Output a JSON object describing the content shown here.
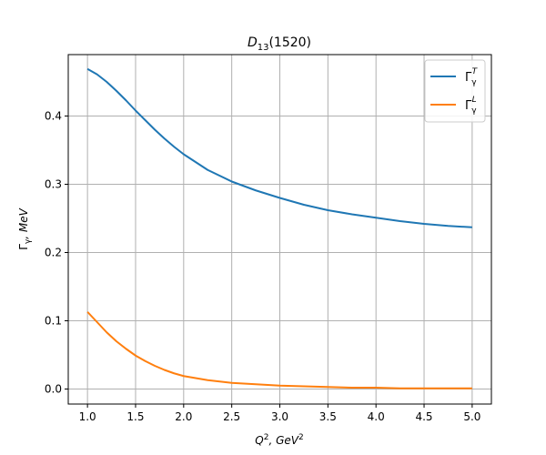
{
  "chart_data": {
    "type": "line",
    "title": {
      "base": "D",
      "sub": "13",
      "rest": "(1520)"
    },
    "xlabel": {
      "base": "Q",
      "sup": "2",
      "mid": ", GeV",
      "sup2": "2"
    },
    "ylabel": {
      "base": "Γ",
      "sub": "γ",
      "rest": ", MeV"
    },
    "xlim": [
      0.8,
      5.2
    ],
    "ylim": [
      -0.022,
      0.49
    ],
    "xticks": [
      1.0,
      1.5,
      2.0,
      2.5,
      3.0,
      3.5,
      4.0,
      4.5,
      5.0
    ],
    "xtick_labels": [
      "1.0",
      "1.5",
      "2.0",
      "2.5",
      "3.0",
      "3.5",
      "4.0",
      "4.5",
      "5.0"
    ],
    "yticks": [
      0.0,
      0.1,
      0.2,
      0.3,
      0.4
    ],
    "ytick_labels": [
      "0.0",
      "0.1",
      "0.2",
      "0.3",
      "0.4"
    ],
    "grid": true,
    "legend_position": "upper-right",
    "series": [
      {
        "name": {
          "base": "Γ",
          "sub": "γ",
          "sup": "T"
        },
        "color": "#1f77b4",
        "x": [
          1.0,
          1.1,
          1.2,
          1.3,
          1.4,
          1.5,
          1.6,
          1.7,
          1.8,
          1.9,
          2.0,
          2.25,
          2.5,
          2.75,
          3.0,
          3.25,
          3.5,
          3.75,
          4.0,
          4.25,
          4.5,
          4.75,
          5.0
        ],
        "y": [
          0.469,
          0.461,
          0.45,
          0.437,
          0.423,
          0.408,
          0.394,
          0.38,
          0.367,
          0.355,
          0.344,
          0.321,
          0.304,
          0.291,
          0.28,
          0.27,
          0.262,
          0.256,
          0.251,
          0.246,
          0.242,
          0.239,
          0.237
        ]
      },
      {
        "name": {
          "base": "Γ",
          "sub": "γ",
          "sup": "L"
        },
        "color": "#ff7f0e",
        "x": [
          1.0,
          1.1,
          1.2,
          1.3,
          1.4,
          1.5,
          1.6,
          1.7,
          1.8,
          1.9,
          2.0,
          2.25,
          2.5,
          2.75,
          3.0,
          3.25,
          3.5,
          3.75,
          4.0,
          4.25,
          4.5,
          4.75,
          5.0
        ],
        "y": [
          0.113,
          0.098,
          0.083,
          0.07,
          0.059,
          0.049,
          0.041,
          0.034,
          0.028,
          0.023,
          0.019,
          0.013,
          0.009,
          0.007,
          0.005,
          0.004,
          0.003,
          0.002,
          0.002,
          0.001,
          0.001,
          0.001,
          0.001
        ]
      }
    ]
  }
}
